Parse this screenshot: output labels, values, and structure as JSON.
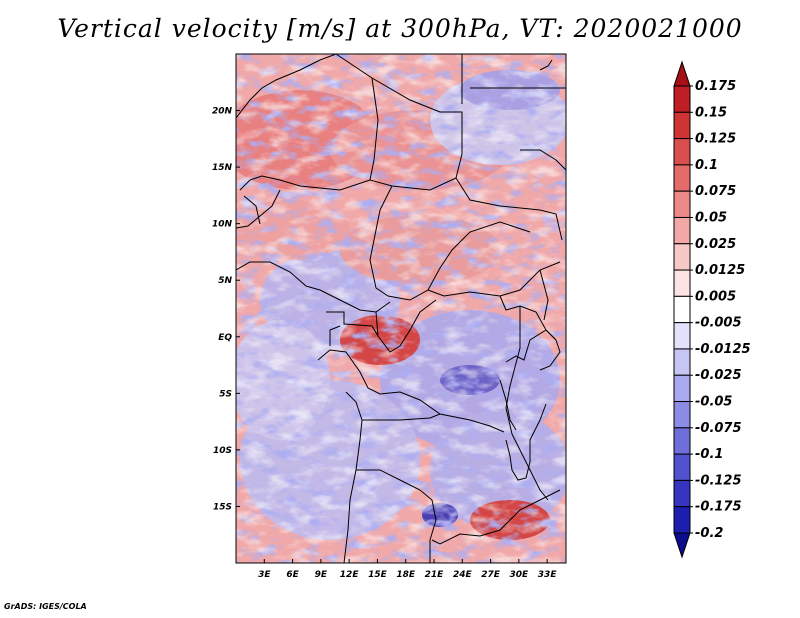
{
  "title": "Vertical velocity [m/s] at 300hPa, VT: 2020021000",
  "credit": "GrADS: IGES/COLA",
  "map": {
    "type": "heatmap",
    "variable": "Vertical velocity",
    "units": "m/s",
    "level": "300hPa",
    "valid_time": "2020021000",
    "lon_range": [
      0,
      35
    ],
    "lat_range": [
      -20,
      25
    ],
    "lat_ticks": [
      {
        "label": "20N",
        "value": 20
      },
      {
        "label": "15N",
        "value": 15
      },
      {
        "label": "10N",
        "value": 10
      },
      {
        "label": "5N",
        "value": 5
      },
      {
        "label": "EQ",
        "value": 0
      },
      {
        "label": "5S",
        "value": -5
      },
      {
        "label": "10S",
        "value": -10
      },
      {
        "label": "15S",
        "value": -15
      }
    ],
    "lon_ticks": [
      {
        "label": "3E",
        "value": 3
      },
      {
        "label": "6E",
        "value": 6
      },
      {
        "label": "9E",
        "value": 9
      },
      {
        "label": "12E",
        "value": 12
      },
      {
        "label": "15E",
        "value": 15
      },
      {
        "label": "18E",
        "value": 18
      },
      {
        "label": "21E",
        "value": 21
      },
      {
        "label": "24E",
        "value": 24
      },
      {
        "label": "27E",
        "value": 27
      },
      {
        "label": "30E",
        "value": 30
      },
      {
        "label": "33E",
        "value": 33
      }
    ]
  },
  "colorbar": {
    "labels": [
      "0.175",
      "0.15",
      "0.125",
      "0.1",
      "0.075",
      "0.05",
      "0.025",
      "0.0125",
      "0.005",
      "-0.005",
      "-0.0125",
      "-0.025",
      "-0.05",
      "-0.075",
      "-0.1",
      "-0.125",
      "-0.175",
      "-0.2"
    ],
    "colors": [
      "#a50f15",
      "#be1e24",
      "#cf3434",
      "#db4e4e",
      "#e56a6a",
      "#ed8888",
      "#f3a7a7",
      "#f8c8c8",
      "#fce4e4",
      "#ffffff",
      "#e2e2fb",
      "#c6c6f5",
      "#a9a9ef",
      "#8c8ce6",
      "#6f6fdc",
      "#5252cf",
      "#3535c0",
      "#1d1db0",
      "#0c0c8f"
    ]
  }
}
